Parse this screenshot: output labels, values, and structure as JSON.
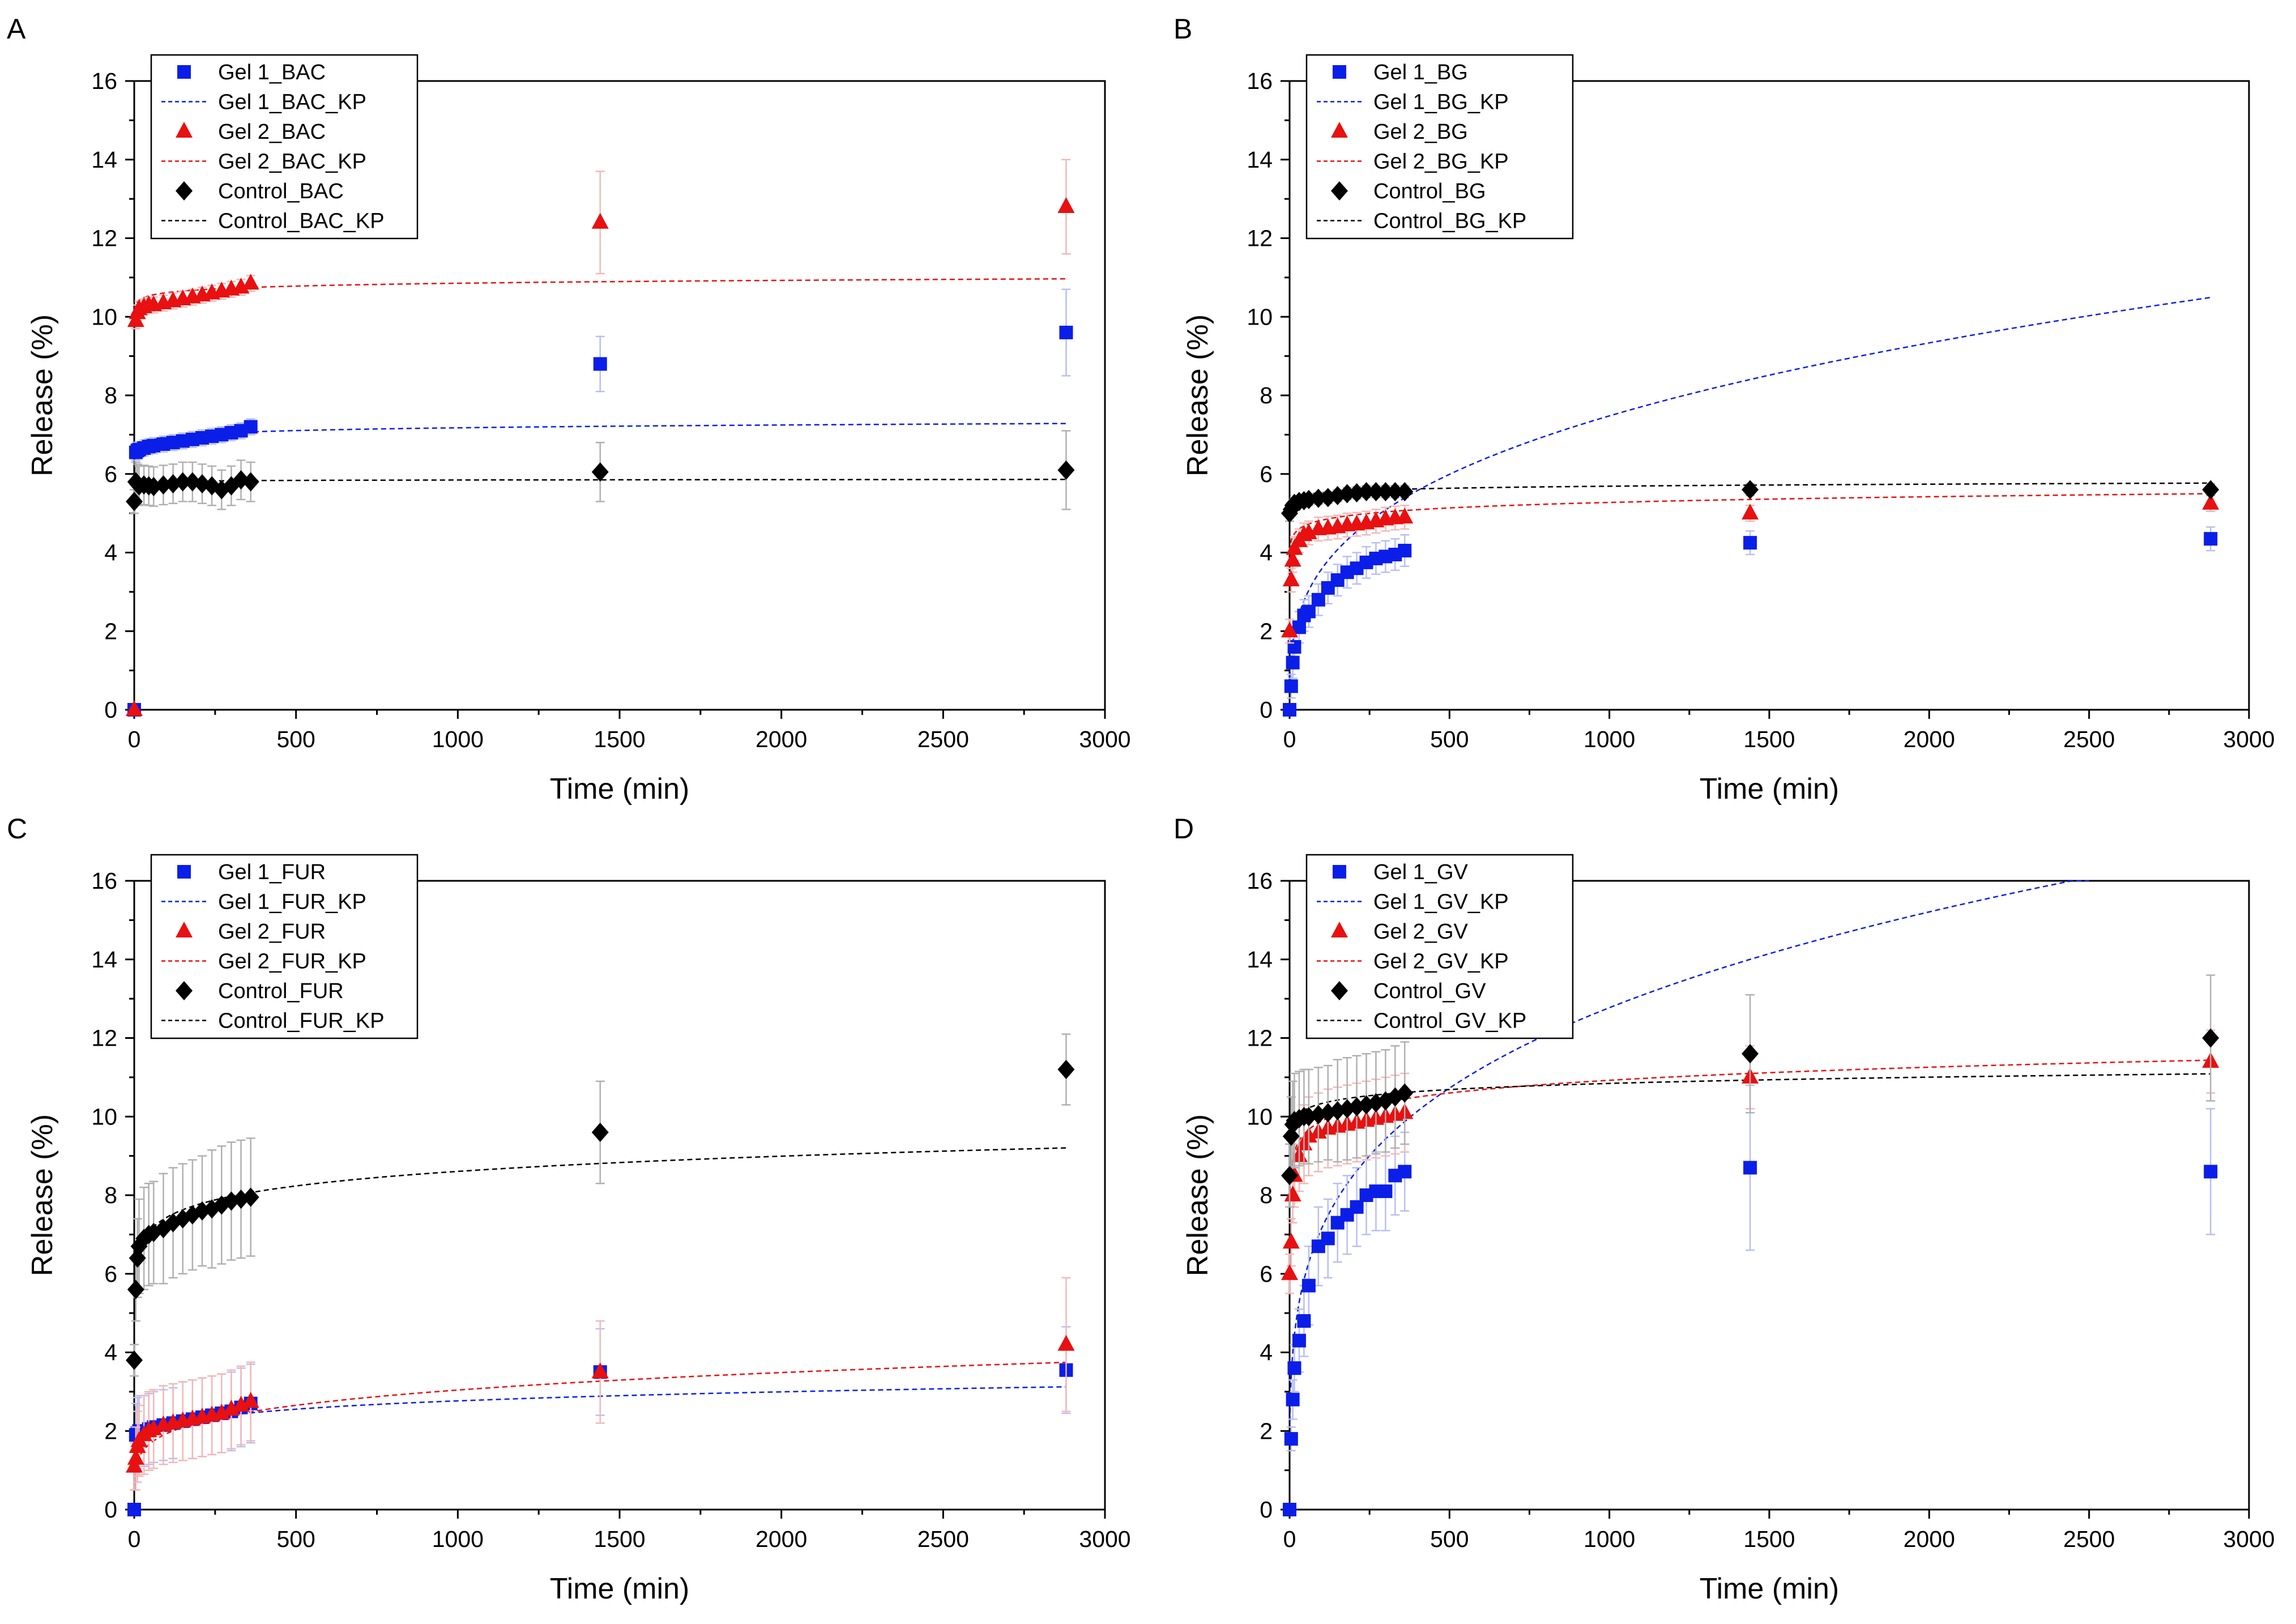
{
  "figure": {
    "panels": [
      "A",
      "B",
      "C",
      "D"
    ]
  },
  "colors": {
    "gel1": "#0a1ee8",
    "gel2": "#e81010",
    "control": "#000000",
    "error_gel1": "#b8bff2",
    "error_gel2": "#f2b8b8",
    "error_control": "#b0b0b0"
  },
  "chart_data": [
    {
      "panel": "A",
      "type": "scatter",
      "xlabel": "Time (min)",
      "ylabel": "Release (%)",
      "xlim": [
        0,
        3000
      ],
      "ylim": [
        0,
        16
      ],
      "xticks": [
        "0",
        "500",
        "1000",
        "1500",
        "2000",
        "2500",
        "3000"
      ],
      "yticks": [
        "0",
        "2",
        "4",
        "6",
        "8",
        "10",
        "12",
        "14",
        "16"
      ],
      "legend": [
        "Gel 1_BAC",
        "Gel 1_BAC_KP",
        "Gel 2_BAC",
        "Gel 2_BAC_KP",
        "Control_BAC",
        "Control_BAC_KP"
      ],
      "x": [
        0,
        5,
        10,
        15,
        30,
        45,
        60,
        90,
        120,
        150,
        180,
        210,
        240,
        270,
        300,
        330,
        360,
        1440,
        2880
      ],
      "series": [
        {
          "name": "Gel 1_BAC",
          "marker": "square",
          "color": "#0a1ee8",
          "values": [
            0,
            6.55,
            6.6,
            6.62,
            6.66,
            6.7,
            6.72,
            6.76,
            6.8,
            6.84,
            6.88,
            6.92,
            6.96,
            7.0,
            7.05,
            7.1,
            7.2,
            8.8,
            9.6
          ],
          "errors": [
            0,
            0.2,
            0.2,
            0.2,
            0.2,
            0.2,
            0.2,
            0.2,
            0.2,
            0.2,
            0.2,
            0.2,
            0.2,
            0.2,
            0.2,
            0.2,
            0.2,
            0.7,
            1.1
          ]
        },
        {
          "name": "Gel 2_BAC",
          "marker": "triangle",
          "color": "#e81010",
          "values": [
            0,
            9.9,
            10.1,
            10.2,
            10.25,
            10.3,
            10.3,
            10.35,
            10.4,
            10.45,
            10.5,
            10.55,
            10.6,
            10.65,
            10.7,
            10.75,
            10.85,
            12.4,
            12.8
          ],
          "errors": [
            0,
            0.2,
            0.2,
            0.2,
            0.2,
            0.2,
            0.2,
            0.2,
            0.2,
            0.2,
            0.2,
            0.2,
            0.2,
            0.2,
            0.2,
            0.2,
            0.2,
            1.3,
            1.2
          ]
        },
        {
          "name": "Control_BAC",
          "marker": "diamond",
          "color": "#000000",
          "values": [
            5.3,
            5.8,
            5.75,
            5.7,
            5.72,
            5.7,
            5.68,
            5.72,
            5.75,
            5.8,
            5.8,
            5.75,
            5.7,
            5.6,
            5.7,
            5.85,
            5.8,
            6.05,
            6.1
          ],
          "errors": [
            0.3,
            0.5,
            0.5,
            0.5,
            0.5,
            0.5,
            0.5,
            0.5,
            0.5,
            0.5,
            0.5,
            0.5,
            0.5,
            0.5,
            0.5,
            0.5,
            0.5,
            0.75,
            1.0
          ]
        }
      ],
      "fits": [
        {
          "name": "Gel 1_BAC_KP",
          "color": "#0a1ee8",
          "k": 6.5,
          "n": 0.0143,
          "xmax": 2880
        },
        {
          "name": "Gel 2_BAC_KP",
          "color": "#e81010",
          "k": 10.15,
          "n": 0.0097,
          "xmax": 2880
        },
        {
          "name": "Control_BAC_KP",
          "color": "#000000",
          "k": 5.75,
          "n": 0.0024,
          "xmax": 2880
        }
      ]
    },
    {
      "panel": "B",
      "type": "scatter",
      "xlabel": "Time (min)",
      "ylabel": "Release (%)",
      "xlim": [
        0,
        3000
      ],
      "ylim": [
        0,
        16
      ],
      "xticks": [
        "0",
        "500",
        "1000",
        "1500",
        "2000",
        "2500",
        "3000"
      ],
      "yticks": [
        "0",
        "2",
        "4",
        "6",
        "8",
        "10",
        "12",
        "14",
        "16"
      ],
      "legend": [
        "Gel 1_BG",
        "Gel 1_BG_KP",
        "Gel 2_BG",
        "Gel 2_BG_KP",
        "Control_BG",
        "Control_BG_KP"
      ],
      "x": [
        0,
        5,
        10,
        15,
        30,
        45,
        60,
        90,
        120,
        150,
        180,
        210,
        240,
        270,
        300,
        330,
        360,
        1440,
        2880
      ],
      "series": [
        {
          "name": "Gel 1_BG",
          "marker": "square",
          "color": "#0a1ee8",
          "values": [
            0,
            0.6,
            1.2,
            1.6,
            2.1,
            2.4,
            2.5,
            2.8,
            3.1,
            3.3,
            3.5,
            3.6,
            3.75,
            3.85,
            3.9,
            3.95,
            4.05,
            4.25,
            4.35
          ],
          "errors": [
            0,
            0.3,
            0.4,
            0.4,
            0.4,
            0.4,
            0.4,
            0.4,
            0.4,
            0.4,
            0.4,
            0.4,
            0.4,
            0.4,
            0.4,
            0.4,
            0.4,
            0.3,
            0.3
          ]
        },
        {
          "name": "Gel 2_BG",
          "marker": "triangle",
          "color": "#e81010",
          "values": [
            2.0,
            3.3,
            3.8,
            4.1,
            4.3,
            4.45,
            4.5,
            4.6,
            4.62,
            4.65,
            4.7,
            4.72,
            4.75,
            4.8,
            4.85,
            4.88,
            4.9,
            5.0,
            5.25
          ],
          "errors": [
            0.3,
            0.3,
            0.3,
            0.3,
            0.3,
            0.3,
            0.3,
            0.3,
            0.3,
            0.3,
            0.3,
            0.3,
            0.3,
            0.3,
            0.3,
            0.3,
            0.3,
            0.2,
            0.2
          ]
        },
        {
          "name": "Control_BG",
          "marker": "diamond",
          "color": "#000000",
          "values": [
            5.0,
            5.1,
            5.2,
            5.25,
            5.3,
            5.32,
            5.35,
            5.38,
            5.4,
            5.45,
            5.5,
            5.52,
            5.55,
            5.55,
            5.55,
            5.55,
            5.55,
            5.6,
            5.6
          ],
          "errors": [
            0.2,
            0.15,
            0.15,
            0.15,
            0.15,
            0.15,
            0.15,
            0.15,
            0.15,
            0.15,
            0.15,
            0.15,
            0.15,
            0.15,
            0.15,
            0.15,
            0.15,
            0.15,
            0.15
          ]
        }
      ],
      "fits": [
        {
          "name": "Gel 1_BG_KP",
          "color": "#0a1ee8",
          "k": 0.82,
          "n": 0.32,
          "xmax": 2880
        },
        {
          "name": "Gel 2_BG_KP",
          "color": "#e81010",
          "k": 4.03,
          "n": 0.039,
          "xmax": 2880
        },
        {
          "name": "Control_BG_KP",
          "color": "#000000",
          "k": 5.2,
          "n": 0.013,
          "xmax": 2880
        }
      ]
    },
    {
      "panel": "C",
      "type": "scatter",
      "xlabel": "Time (min)",
      "ylabel": "Release (%)",
      "xlim": [
        0,
        3000
      ],
      "ylim": [
        0,
        16
      ],
      "xticks": [
        "0",
        "500",
        "1000",
        "1500",
        "2000",
        "2500",
        "3000"
      ],
      "yticks": [
        "0",
        "2",
        "4",
        "6",
        "8",
        "10",
        "12",
        "14",
        "16"
      ],
      "legend": [
        "Gel 1_FUR",
        "Gel 1_FUR_KP",
        "Gel 2_FUR",
        "Gel 2_FUR_KP",
        "Control_FUR",
        "Control_FUR_KP"
      ],
      "x": [
        0,
        5,
        10,
        15,
        30,
        45,
        60,
        90,
        120,
        150,
        180,
        210,
        240,
        270,
        300,
        330,
        360,
        1440,
        2880
      ],
      "series": [
        {
          "name": "Gel 1_FUR",
          "marker": "square",
          "color": "#0a1ee8",
          "values": [
            0,
            1.9,
            1.95,
            2.0,
            2.0,
            2.05,
            2.1,
            2.15,
            2.2,
            2.25,
            2.3,
            2.35,
            2.4,
            2.45,
            2.5,
            2.6,
            2.7,
            3.5,
            3.55
          ],
          "errors": [
            0,
            0.8,
            0.9,
            0.9,
            0.9,
            0.9,
            0.9,
            0.9,
            0.9,
            1.0,
            1.0,
            1.0,
            1.0,
            1.0,
            1.0,
            1.0,
            1.0,
            1.1,
            1.1
          ]
        },
        {
          "name": "Gel 2_FUR",
          "marker": "triangle",
          "color": "#e81010",
          "values": [
            1.1,
            1.3,
            1.6,
            1.75,
            1.9,
            2.0,
            2.05,
            2.15,
            2.2,
            2.25,
            2.3,
            2.35,
            2.4,
            2.45,
            2.55,
            2.65,
            2.75,
            3.5,
            4.2
          ],
          "errors": [
            0.6,
            0.8,
            0.9,
            0.9,
            1.0,
            1.0,
            1.0,
            1.0,
            1.0,
            1.0,
            1.0,
            1.0,
            1.0,
            1.0,
            1.0,
            1.0,
            1.0,
            1.3,
            1.7
          ]
        },
        {
          "name": "Control_FUR",
          "marker": "diamond",
          "color": "#000000",
          "values": [
            3.8,
            5.6,
            6.4,
            6.7,
            6.9,
            7.0,
            7.05,
            7.15,
            7.3,
            7.4,
            7.5,
            7.6,
            7.65,
            7.75,
            7.85,
            7.9,
            7.95,
            9.6,
            11.2
          ],
          "errors": [
            0.4,
            0.8,
            1.0,
            1.2,
            1.3,
            1.3,
            1.3,
            1.4,
            1.4,
            1.4,
            1.4,
            1.4,
            1.5,
            1.5,
            1.5,
            1.5,
            1.5,
            1.3,
            0.9
          ]
        }
      ],
      "fits": [
        {
          "name": "Gel 1_FUR_KP",
          "color": "#0a1ee8",
          "k": 1.25,
          "n": 0.115,
          "xmax": 2880
        },
        {
          "name": "Gel 2_FUR_KP",
          "color": "#e81010",
          "k": 0.78,
          "n": 0.197,
          "xmax": 2880
        },
        {
          "name": "Control_FUR_KP",
          "color": "#000000",
          "k": 5.55,
          "n": 0.0635,
          "xmax": 2880
        }
      ]
    },
    {
      "panel": "D",
      "type": "scatter",
      "xlabel": "Time (min)",
      "ylabel": "Release (%)",
      "xlim": [
        0,
        3000
      ],
      "ylim": [
        0,
        16
      ],
      "xticks": [
        "0",
        "500",
        "1000",
        "1500",
        "2000",
        "2500",
        "3000"
      ],
      "yticks": [
        "0",
        "2",
        "4",
        "6",
        "8",
        "10",
        "12",
        "14",
        "16"
      ],
      "legend": [
        "Gel 1_GV",
        "Gel 1_GV_KP",
        "Gel 2_GV",
        "Gel 2_GV_KP",
        "Control_GV",
        "Control_GV_KP"
      ],
      "x": [
        0,
        5,
        10,
        15,
        30,
        45,
        60,
        90,
        120,
        150,
        180,
        210,
        240,
        270,
        300,
        330,
        360,
        1440,
        2880
      ],
      "series": [
        {
          "name": "Gel 1_GV",
          "marker": "square",
          "color": "#0a1ee8",
          "values": [
            0,
            1.8,
            2.8,
            3.6,
            4.3,
            4.8,
            5.7,
            6.7,
            6.9,
            7.3,
            7.5,
            7.7,
            8.0,
            8.1,
            8.1,
            8.5,
            8.6,
            8.7,
            8.6
          ],
          "errors": [
            0,
            0.3,
            0.5,
            0.6,
            0.8,
            0.9,
            1.0,
            1.0,
            1.0,
            1.0,
            1.0,
            1.0,
            1.0,
            1.0,
            1.0,
            1.0,
            1.0,
            2.1,
            1.6
          ]
        },
        {
          "name": "Gel 2_GV",
          "marker": "triangle",
          "color": "#e81010",
          "values": [
            6.0,
            6.8,
            8.0,
            8.5,
            9.0,
            9.3,
            9.5,
            9.6,
            9.7,
            9.75,
            9.8,
            9.85,
            9.9,
            9.95,
            10.0,
            10.05,
            10.1,
            11.0,
            11.4
          ],
          "errors": [
            0.5,
            0.6,
            0.7,
            0.8,
            0.9,
            1.0,
            1.0,
            1.0,
            1.0,
            1.0,
            1.0,
            1.0,
            1.0,
            1.0,
            1.0,
            1.0,
            1.0,
            0.8,
            0.8
          ]
        },
        {
          "name": "Control_GV",
          "marker": "diamond",
          "color": "#000000",
          "values": [
            8.5,
            9.5,
            9.8,
            9.9,
            9.95,
            10.0,
            10.0,
            10.05,
            10.1,
            10.15,
            10.2,
            10.25,
            10.3,
            10.35,
            10.4,
            10.5,
            10.6,
            11.6,
            12.0
          ],
          "errors": [
            0.8,
            1.0,
            1.1,
            1.2,
            1.2,
            1.2,
            1.2,
            1.2,
            1.2,
            1.3,
            1.3,
            1.3,
            1.3,
            1.3,
            1.3,
            1.3,
            1.3,
            1.5,
            1.6
          ]
        }
      ],
      "fits": [
        {
          "name": "Gel 1_GV_KP",
          "color": "#0a1ee8",
          "k": 2.24,
          "n": 0.252,
          "xmax": 2500
        },
        {
          "name": "Gel 2_GV_KP",
          "color": "#e81010",
          "k": 8.1,
          "n": 0.0433,
          "xmax": 2880
        },
        {
          "name": "Control_GV_KP",
          "color": "#000000",
          "k": 9.38,
          "n": 0.021,
          "xmax": 2880
        }
      ]
    }
  ]
}
